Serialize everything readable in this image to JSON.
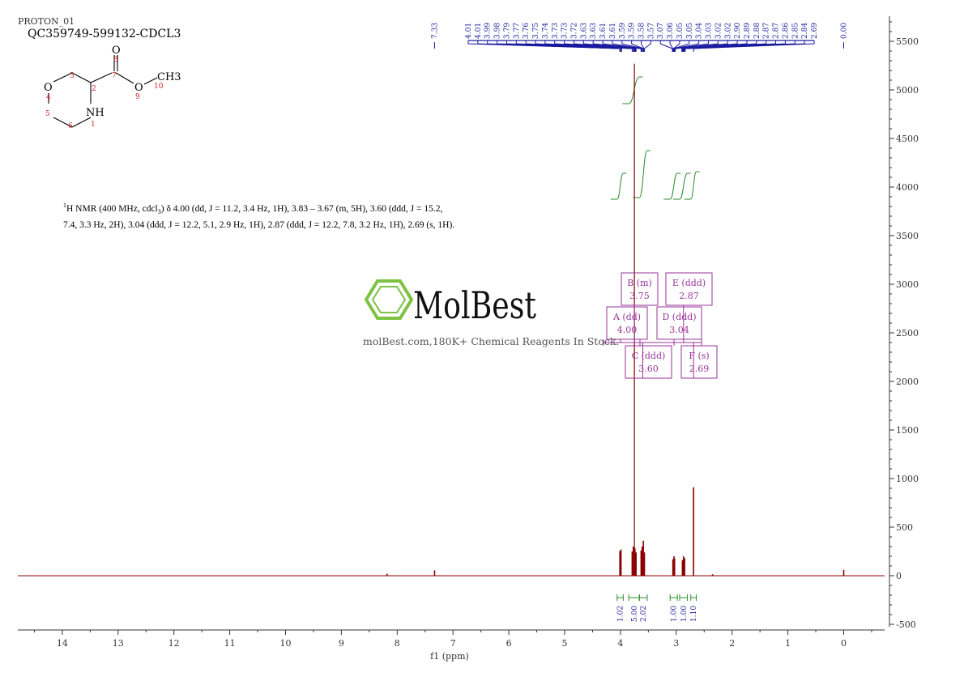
{
  "header": {
    "experiment": "PROTON_01",
    "sample": "QC359749-599132-CDCL3"
  },
  "structure": {
    "atoms": [
      "O",
      "NH",
      "O",
      "O",
      "CH3"
    ],
    "atom_numbers": [
      "1",
      "2",
      "3",
      "4",
      "5",
      "6",
      "7",
      "8",
      "9",
      "10"
    ]
  },
  "nmr_summary": {
    "line1": "H NMR (400 MHz, cdcl",
    "line1_sup": "1",
    "line1_sub": "3",
    "line1_rest": ") δ 4.00 (dd, J = 11.2, 3.4 Hz, 1H), 3.83 – 3.67 (m, 5H), 3.60 (ddd, J = 15.2,",
    "line2": "7.4, 3.3 Hz, 2H), 3.04 (ddd, J = 12.2, 5.1, 2.9 Hz, 1H), 2.87 (ddd, J = 12.2, 7.8, 3.2 Hz, 1H), 2.69 (s, 1H)."
  },
  "watermark": {
    "brand": "MolBest",
    "tagline": "molBest.com,180K+ Chemical Reagents In Stock."
  },
  "colors": {
    "spectrum": "#8b0000",
    "integral": "#2e8b2e",
    "multiplet": "#993399",
    "peak_label": "#1a1aa0",
    "logo_green": "#7dc242"
  },
  "chart_data": {
    "type": "line",
    "xlabel": "f1 (ppm)",
    "x_ticks": [
      14,
      13,
      12,
      11,
      10,
      9,
      8,
      7,
      6,
      5,
      4,
      3,
      2,
      1,
      0
    ],
    "xlim": [
      14.9,
      -0.7
    ],
    "x_reversed": true,
    "y_ticks": [
      5500,
      5000,
      4500,
      4000,
      3500,
      3000,
      2500,
      2000,
      1500,
      1000,
      500,
      0,
      -500
    ],
    "ylim": [
      -560,
      5760
    ],
    "peak_labels": [
      "7.33",
      "4.01",
      "4.01",
      "3.99",
      "3.98",
      "3.79",
      "3.77",
      "3.76",
      "3.75",
      "3.74",
      "3.73",
      "3.73",
      "3.72",
      "3.63",
      "3.63",
      "3.61",
      "3.61",
      "3.59",
      "3.59",
      "3.58",
      "3.57",
      "3.07",
      "3.06",
      "3.05",
      "3.05",
      "3.04",
      "3.03",
      "3.02",
      "3.02",
      "2.90",
      "2.89",
      "2.88",
      "2.87",
      "2.87",
      "2.86",
      "2.85",
      "2.84",
      "2.69",
      "0.00"
    ],
    "peaks": [
      {
        "ppm": 8.18,
        "height": 20
      },
      {
        "ppm": 7.33,
        "height": 55
      },
      {
        "ppm": 4.01,
        "height": 255
      },
      {
        "ppm": 3.99,
        "height": 270
      },
      {
        "ppm": 3.79,
        "height": 250
      },
      {
        "ppm": 3.77,
        "height": 300
      },
      {
        "ppm": 3.75,
        "height": 5270
      },
      {
        "ppm": 3.74,
        "height": 280
      },
      {
        "ppm": 3.72,
        "height": 240
      },
      {
        "ppm": 3.63,
        "height": 260
      },
      {
        "ppm": 3.61,
        "height": 300
      },
      {
        "ppm": 3.59,
        "height": 360
      },
      {
        "ppm": 3.57,
        "height": 240
      },
      {
        "ppm": 3.06,
        "height": 170
      },
      {
        "ppm": 3.04,
        "height": 200
      },
      {
        "ppm": 3.03,
        "height": 180
      },
      {
        "ppm": 2.89,
        "height": 160
      },
      {
        "ppm": 2.87,
        "height": 200
      },
      {
        "ppm": 2.85,
        "height": 180
      },
      {
        "ppm": 2.69,
        "height": 910
      },
      {
        "ppm": 2.35,
        "height": 15
      },
      {
        "ppm": 0.0,
        "height": 60
      }
    ],
    "integrals": [
      {
        "from": 4.06,
        "to": 3.95,
        "value": "1.02"
      },
      {
        "from": 3.85,
        "to": 3.66,
        "value": "5.00"
      },
      {
        "from": 3.66,
        "to": 3.52,
        "value": "2.02"
      },
      {
        "from": 3.11,
        "to": 2.98,
        "value": "1.00"
      },
      {
        "from": 2.94,
        "to": 2.8,
        "value": "1.00"
      },
      {
        "from": 2.74,
        "to": 2.64,
        "value": "1.10"
      }
    ],
    "multiplets": [
      {
        "letter": "A",
        "type": "(dd)",
        "shift": "4.00"
      },
      {
        "letter": "B",
        "type": "(m)",
        "shift": "3.75"
      },
      {
        "letter": "C",
        "type": "(ddd)",
        "shift": "3.60"
      },
      {
        "letter": "D",
        "type": "(ddd)",
        "shift": "3.04"
      },
      {
        "letter": "E",
        "type": "(ddd)",
        "shift": "2.87"
      },
      {
        "letter": "F",
        "type": "(s)",
        "shift": "2.69"
      }
    ]
  }
}
